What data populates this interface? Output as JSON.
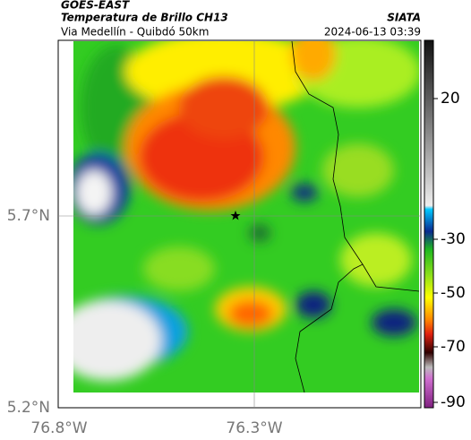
{
  "header": {
    "title": "GOES-EAST",
    "subtitle": "Temperatura de Brillo CH13",
    "source": "SIATA",
    "region": "Via Medellín - Quibdó 50km",
    "timestamp": "2024-06-13 03:39"
  },
  "map": {
    "lat_labels": [
      "5.7°N",
      "5.2°N"
    ],
    "lon_labels": [
      "76.8°W",
      "76.3°W"
    ]
  },
  "colorbar": {
    "ticks": [
      "20",
      "-30",
      "-50",
      "-70",
      "-90"
    ]
  }
}
